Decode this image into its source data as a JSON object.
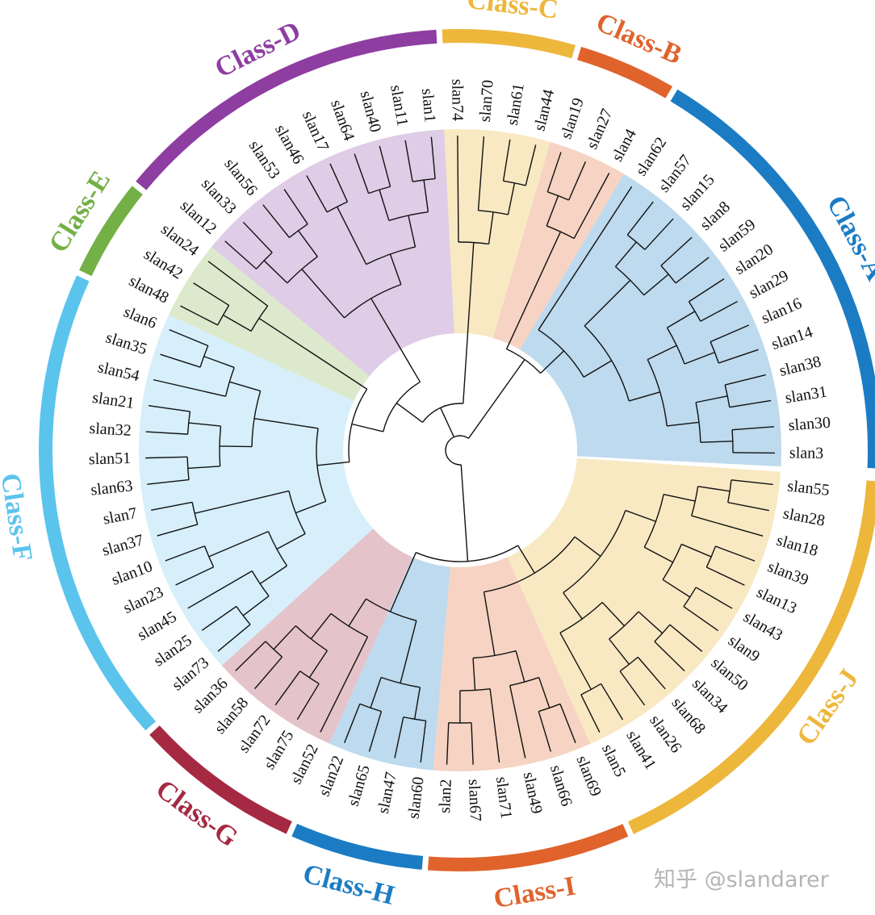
{
  "diagram": {
    "type": "circular-phylogenetic-tree",
    "leaves": [
      "slan3",
      "slan30",
      "slan31",
      "slan38",
      "slan14",
      "slan16",
      "slan29",
      "slan20",
      "slan59",
      "slan8",
      "slan15",
      "slan57",
      "slan62",
      "slan4",
      "slan27",
      "slan19",
      "slan44",
      "slan61",
      "slan70",
      "slan74",
      "slan1",
      "slan11",
      "slan40",
      "slan64",
      "slan17",
      "slan46",
      "slan53",
      "slan56",
      "slan33",
      "slan12",
      "slan24",
      "slan42",
      "slan48",
      "slan6",
      "slan35",
      "slan54",
      "slan21",
      "slan32",
      "slan51",
      "slan63",
      "slan7",
      "slan37",
      "slan10",
      "slan23",
      "slan45",
      "slan25",
      "slan73",
      "slan36",
      "slan58",
      "slan72",
      "slan75",
      "slan52",
      "slan22",
      "slan65",
      "slan47",
      "slan60",
      "slan2",
      "slan67",
      "slan71",
      "slan49",
      "slan66",
      "slan69",
      "slan5",
      "slan41",
      "slan26",
      "slan68",
      "slan34",
      "slan50",
      "slan9",
      "slan43",
      "slan13",
      "slan39",
      "slan18",
      "slan28",
      "slan55"
    ],
    "classes": [
      {
        "name": "Class-A",
        "first": 0,
        "last": 12,
        "color": "#1B7CC4",
        "fill": "#BDDAEE"
      },
      {
        "name": "Class-B",
        "first": 13,
        "last": 15,
        "color": "#E0632C",
        "fill": "#F6D3C2"
      },
      {
        "name": "Class-C",
        "first": 16,
        "last": 19,
        "color": "#EDB73C",
        "fill": "#F8E9C3"
      },
      {
        "name": "Class-D",
        "first": 20,
        "last": 29,
        "color": "#8E3DA1",
        "fill": "#DFCCE6"
      },
      {
        "name": "Class-E",
        "first": 30,
        "last": 32,
        "color": "#73B045",
        "fill": "#DCE9CC"
      },
      {
        "name": "Class-F",
        "first": 33,
        "last": 46,
        "color": "#5BC4ED",
        "fill": "#D6EFFA"
      },
      {
        "name": "Class-G",
        "first": 47,
        "last": 51,
        "color": "#A52942",
        "fill": "#E5C3CB"
      },
      {
        "name": "Class-H",
        "first": 52,
        "last": 55,
        "color": "#1B7CC4",
        "fill": "#BDDAEE"
      },
      {
        "name": "Class-I",
        "first": 56,
        "last": 61,
        "color": "#E0632C",
        "fill": "#F6D3C2"
      },
      {
        "name": "Class-J",
        "first": 62,
        "last": 74,
        "color": "#EDB73C",
        "fill": "#F8E9C3"
      }
    ],
    "tree": [
      "root",
      [
        [
          "nAB",
          [
            "nA",
            [
              "a1",
              [
                "a2",
                [
                  "a3",
                  [
                    "a4",
                    "slan3",
                    "slan30"
                  ],
                  [
                    "a5",
                    "slan31",
                    "slan38"
                  ]
                ],
                [
                  "a6",
                  [
                    "a7",
                    "slan14",
                    "slan16"
                  ],
                  [
                    "a8",
                    "slan29",
                    "slan20"
                  ]
                ]
              ],
              [
                "a9",
                [
                  "a10",
                  "slan59",
                  "slan8"
                ],
                [
                  "a11",
                  "slan15",
                  "slan57"
                ]
              ]
            ],
            "slan62"
          ],
          [
            "nB",
            "slan4",
            [
              "b1",
              "slan27",
              "slan19"
            ]
          ]
        ],
        [
          "nCD",
          [
            "nC",
            [
              "c1",
              [
                "c2",
                "slan44",
                "slan61"
              ],
              "slan70"
            ],
            "slan74"
          ],
          [
            "nDEF",
            [
              "nD",
              [
                "d1",
                [
                  "d2",
                  [
                    "d3",
                    "slan1",
                    "slan11"
                  ],
                  [
                    "d4",
                    "slan40",
                    "slan64"
                  ]
                ],
                [
                  "d5",
                  "slan17",
                  "slan46"
                ]
              ],
              [
                "d6",
                [
                  "d7",
                  "slan53",
                  "slan56"
                ],
                [
                  "d8",
                  "slan33",
                  "slan12"
                ]
              ]
            ],
            [
              "nEF",
              [
                "nE",
                "slan24",
                [
                  "e1",
                  "slan42",
                  "slan48"
                ]
              ],
              [
                "nF",
                [
                  "f1",
                  [
                    "f2",
                    [
                      "f3",
                      "slan6",
                      "slan35"
                    ],
                    "slan54"
                  ],
                  [
                    "f4",
                    [
                      "f5",
                      "slan21",
                      "slan32"
                    ],
                    [
                      "f6",
                      "slan51",
                      "slan63"
                    ]
                  ]
                ],
                [
                  "f7",
                  [
                    "f8",
                    "slan7",
                    "slan37"
                  ],
                  [
                    "f9",
                    [
                      "f10",
                      "slan10",
                      "slan23"
                    ],
                    [
                      "f11",
                      "slan45",
                      [
                        "f12",
                        "slan25",
                        "slan73"
                      ]
                    ]
                  ]
                ]
              ]
            ]
          ]
        ]
      ],
      [
        [
          "nGHIJ",
          [
            "nGH",
            [
              "nG",
              [
                "g1",
                [
                  "g2",
                  "slan36",
                  "slan58"
                ],
                [
                  "g3",
                  "slan72",
                  "slan75"
                ]
              ],
              "slan52"
            ],
            [
              "nH",
              [
                "h1",
                "slan22",
                "slan65"
              ],
              [
                "h2",
                "slan47",
                "slan60"
              ]
            ]
          ],
          [
            "nIJ",
            [
              "nI",
              [
                "i1",
                [
                  "i2",
                  "slan2",
                  "slan67"
                ],
                "slan71"
              ],
              [
                "i3",
                "slan49",
                [
                  "i4",
                  "slan66",
                  "slan69"
                ]
              ]
            ],
            [
              "nJ",
              [
                "j1",
                [
                  "j2",
                  "slan5",
                  "slan41"
                ],
                [
                  "j3",
                  [
                    "j4",
                    "slan26",
                    "slan68"
                  ],
                  [
                    "j5",
                    "slan34",
                    "slan50"
                  ]
                ]
              ],
              [
                "j6",
                [
                  "j7",
                  [
                    "j8",
                    "slan9",
                    "slan43"
                  ],
                  [
                    "j9",
                    "slan13",
                    "slan39"
                  ]
                ],
                [
                  "j10",
                  "slan18",
                  [
                    "j11",
                    "slan28",
                    "slan55"
                  ]
                ]
              ]
            ]
          ]
        ]
      ]
    ]
  },
  "watermark": "知乎 @slandarer"
}
